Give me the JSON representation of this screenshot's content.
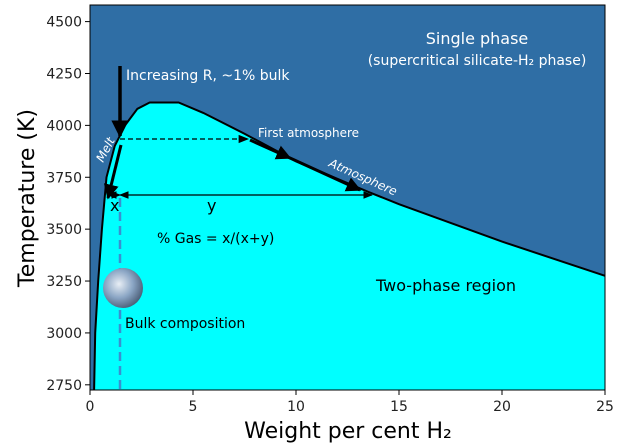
{
  "chart_data": {
    "type": "phase-diagram",
    "x_label": "Weight per cent H₂",
    "y_label": "Temperature (K)",
    "xlim": [
      0,
      25
    ],
    "xticks": [
      0,
      5,
      10,
      15,
      20,
      25
    ],
    "ylim": [
      2725,
      4580
    ],
    "yticks": [
      2750,
      3000,
      3250,
      3500,
      3750,
      4000,
      4250,
      4500
    ],
    "single_phase_color": "#2f6ea5",
    "two_phase_color": "#00ffff",
    "series": [
      {
        "color": "#000000",
        "x": [
          0.2,
          0.25,
          0.4,
          0.58,
          0.8,
          1.2,
          1.7,
          2.3,
          2.9,
          4.3,
          5.5,
          7.5,
          10,
          13.5,
          15,
          20,
          25
        ],
        "values": [
          2725,
          3000,
          3250,
          3500,
          3750,
          3900,
          4000,
          4080,
          4110,
          4110,
          4060,
          3960,
          3827,
          3680,
          3620,
          3440,
          3275
        ]
      }
    ],
    "annotations": [
      "Single phase",
      "(supercritical silicate-H₂ phase)",
      "Increasing R, ~1% bulk",
      "First atmosphere",
      "Melt",
      "Atmosphere",
      "x",
      "y",
      "% Gas = x/(x+y)",
      "Two-phase region",
      "Bulk composition"
    ]
  }
}
